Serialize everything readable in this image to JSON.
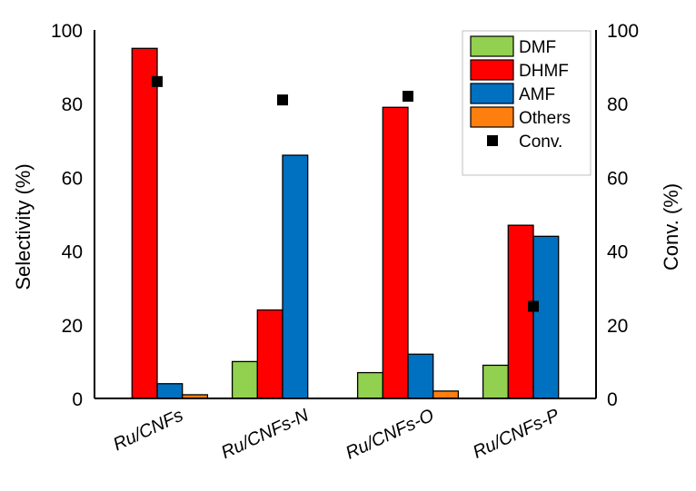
{
  "chart_data": {
    "type": "bar",
    "title": "",
    "categories": [
      "Ru/CNFs",
      "Ru/CNFs-N",
      "Ru/CNFs-O",
      "Ru/CNFs-P"
    ],
    "series": [
      {
        "name": "DMF",
        "type": "bar",
        "axis": "left",
        "color": "#92d050",
        "values": [
          0,
          10,
          7,
          9
        ]
      },
      {
        "name": "DHMF",
        "type": "bar",
        "axis": "left",
        "color": "#ff0000",
        "values": [
          95,
          24,
          79,
          47
        ]
      },
      {
        "name": "AMF",
        "type": "bar",
        "axis": "left",
        "color": "#0070c0",
        "values": [
          4,
          66,
          12,
          44
        ]
      },
      {
        "name": "Others",
        "type": "bar",
        "axis": "left",
        "color": "#ff7f0e",
        "values": [
          1,
          0,
          2,
          0
        ]
      },
      {
        "name": "Conv.",
        "type": "scatter",
        "axis": "right",
        "color": "#000000",
        "marker": "square",
        "values": [
          86,
          81,
          82,
          25
        ]
      }
    ],
    "xlabel": "",
    "ylabel": "Selectivity (%)",
    "ylabel_right": "Conv. (%)",
    "ylim": [
      0,
      100
    ],
    "ylim_right": [
      0,
      100
    ],
    "yticks": [
      0,
      20,
      40,
      60,
      80,
      100
    ],
    "yticks_right": [
      0,
      20,
      40,
      60,
      80,
      100
    ],
    "grid": false,
    "legend_position": "upper right inside"
  }
}
